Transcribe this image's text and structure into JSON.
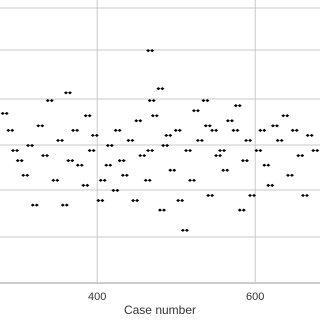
{
  "chart_data": {
    "type": "scatter",
    "x_label": "Case number",
    "color": "#000000",
    "xlim": [
      277,
      682
    ],
    "xticks": [
      400,
      600
    ],
    "ylim": [
      0,
      6
    ],
    "grid": true,
    "x": [
      467,
      283,
      290,
      296,
      302,
      309,
      315,
      321,
      328,
      334,
      340,
      347,
      353,
      359,
      363,
      366,
      372,
      378,
      385,
      388,
      393,
      397,
      404,
      407,
      414,
      416,
      423,
      426,
      431,
      435,
      442,
      448,
      452,
      457,
      464,
      467,
      469,
      473,
      480,
      482,
      486,
      490,
      495,
      502,
      505,
      511,
      515,
      520,
      525,
      530,
      537,
      540,
      543,
      548,
      553,
      558,
      562,
      568,
      575,
      578,
      583,
      587,
      591,
      596,
      604,
      609,
      614,
      619,
      625,
      631,
      638,
      644,
      650,
      657,
      663,
      669,
      676
    ],
    "y": [
      5.07,
      3.7,
      3.33,
      2.89,
      2.67,
      2.35,
      3.0,
      1.7,
      3.43,
      2.78,
      3.98,
      2.24,
      3.11,
      1.7,
      4.15,
      2.67,
      3.33,
      2.57,
      2.13,
      3.65,
      2.89,
      3.22,
      1.8,
      2.24,
      2.57,
      3.0,
      2.02,
      3.33,
      2.67,
      2.35,
      3.11,
      1.8,
      3.54,
      2.78,
      2.24,
      2.89,
      3.98,
      3.65,
      4.24,
      1.59,
      3.0,
      3.22,
      2.46,
      3.33,
      1.8,
      1.15,
      2.89,
      2.24,
      3.76,
      3.11,
      3.98,
      3.43,
      1.91,
      3.33,
      2.78,
      2.89,
      2.46,
      3.54,
      3.33,
      3.87,
      1.59,
      2.67,
      3.11,
      1.91,
      2.89,
      3.33,
      2.57,
      2.13,
      3.43,
      3.11,
      3.65,
      2.35,
      3.33,
      2.78,
      1.91,
      3.22,
      2.89
    ]
  }
}
